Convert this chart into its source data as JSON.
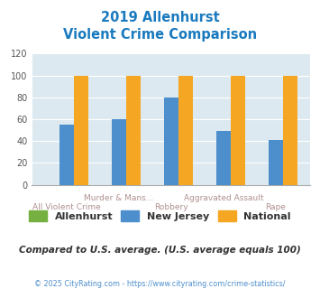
{
  "title_line1": "2019 Allenhurst",
  "title_line2": "Violent Crime Comparison",
  "categories": [
    "All Violent Crime",
    "Murder & Mans...",
    "Robbery",
    "Aggravated Assault",
    "Rape"
  ],
  "series": {
    "Allenhurst": [
      0,
      0,
      0,
      0,
      0
    ],
    "New Jersey": [
      55,
      60,
      80,
      49,
      41
    ],
    "National": [
      100,
      100,
      100,
      100,
      100
    ]
  },
  "colors": {
    "Allenhurst": "#76b041",
    "New Jersey": "#4d8fcc",
    "National": "#f5a623"
  },
  "ylim": [
    0,
    120
  ],
  "yticks": [
    0,
    20,
    40,
    60,
    80,
    100,
    120
  ],
  "plot_bg": "#dce9f0",
  "title_color": "#1a7abf",
  "xlabel_color": "#b09090",
  "footnote1": "Compared to U.S. average. (U.S. average equals 100)",
  "footnote2": "© 2025 CityRating.com - https://www.cityrating.com/crime-statistics/",
  "footnote1_color": "#333333",
  "footnote2_color": "#4d8fcc",
  "bar_width": 0.28,
  "grid_color": "#ffffff"
}
